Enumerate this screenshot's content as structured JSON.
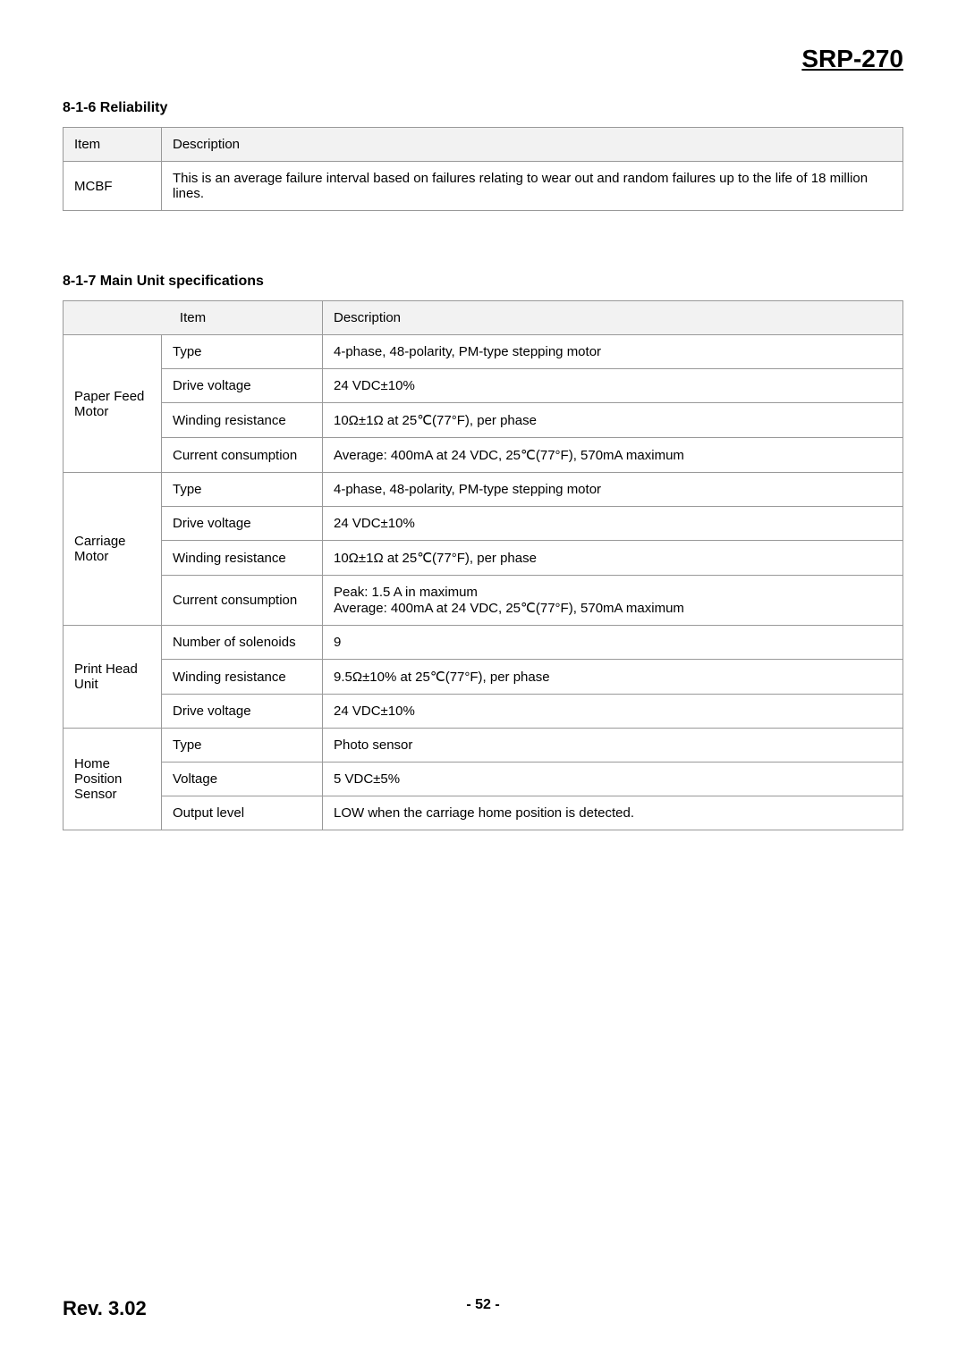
{
  "model_title": "SRP-270",
  "section_1": {
    "heading": "8-1-6 Reliability",
    "table": {
      "headers": [
        "Item",
        "Description"
      ],
      "rows": [
        {
          "item": "MCBF",
          "description": "This is an average failure interval based on failures relating to wear out and random failures up to the life of 18 million lines."
        }
      ]
    }
  },
  "section_2": {
    "heading": "8-1-7 Main Unit specifications",
    "table": {
      "headers": [
        "Item",
        "Description"
      ],
      "groups": [
        {
          "group": "Paper Feed Motor",
          "rows": [
            {
              "sub": "Type",
              "desc": "4-phase, 48-polarity, PM-type stepping motor"
            },
            {
              "sub": "Drive voltage",
              "desc": "24 VDC±10%"
            },
            {
              "sub": "Winding resistance",
              "desc": "10Ω±1Ω at 25℃(77°F), per phase"
            },
            {
              "sub": "Current consumption",
              "desc": "Average: 400mA at 24 VDC, 25℃(77°F), 570mA maximum"
            }
          ]
        },
        {
          "group": "Carriage Motor",
          "rows": [
            {
              "sub": "Type",
              "desc": "4-phase, 48-polarity, PM-type stepping motor"
            },
            {
              "sub": "Drive voltage",
              "desc": "24 VDC±10%"
            },
            {
              "sub": "Winding resistance",
              "desc": "10Ω±1Ω at 25℃(77°F), per phase"
            },
            {
              "sub": "Current consumption",
              "desc": "Peak: 1.5 A in maximum\nAverage: 400mA at 24 VDC, 25℃(77°F), 570mA maximum"
            }
          ]
        },
        {
          "group": "Print Head Unit",
          "rows": [
            {
              "sub": "Number of solenoids",
              "desc": "9"
            },
            {
              "sub": "Winding resistance",
              "desc": "9.5Ω±10% at 25℃(77°F), per phase"
            },
            {
              "sub": "Drive voltage",
              "desc": "24 VDC±10%"
            }
          ]
        },
        {
          "group": "Home Position Sensor",
          "rows": [
            {
              "sub": "Type",
              "desc": "Photo sensor"
            },
            {
              "sub": "Voltage",
              "desc": "5 VDC±5%"
            },
            {
              "sub": "Output level",
              "desc": "LOW when the carriage home position is detected."
            }
          ]
        }
      ]
    }
  },
  "footer": {
    "rev": "Rev. 3.02",
    "page": "- 52 -"
  }
}
